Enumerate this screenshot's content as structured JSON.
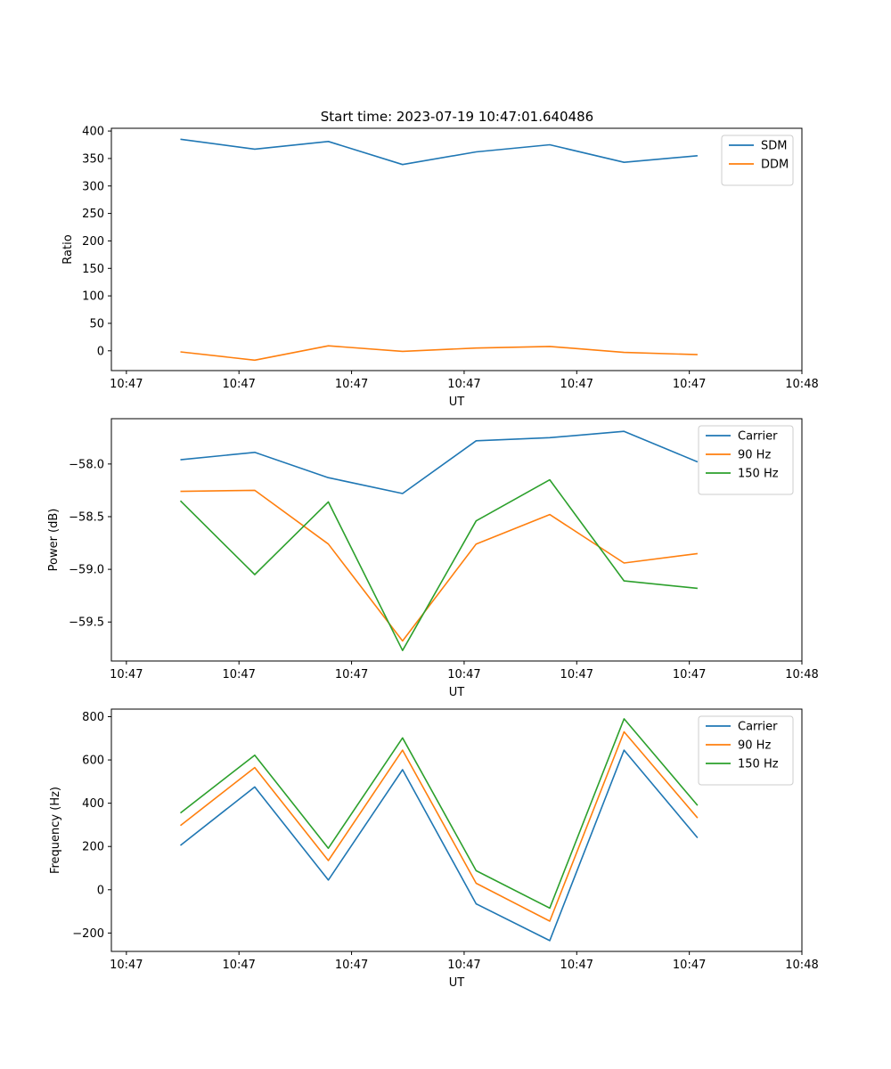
{
  "figure": {
    "title": "Start time: 2023-07-19 10:47:01.640486"
  },
  "chart_data": [
    {
      "type": "line",
      "title": "Start time: 2023-07-19 10:47:01.640486",
      "xlabel": "UT",
      "ylabel": "Ratio",
      "xlim": [
        -0.2,
        9.0
      ],
      "ylim": [
        -36,
        405
      ],
      "x_ticks": [
        0,
        1.5,
        3,
        4.5,
        6,
        7.5,
        9
      ],
      "x_tick_labels": [
        "10:47",
        "10:47",
        "10:47",
        "10:47",
        "10:47",
        "10:47",
        "10:48"
      ],
      "y_ticks": [
        0,
        50,
        100,
        150,
        200,
        250,
        300,
        350,
        400
      ],
      "y_tick_labels": [
        "0",
        "50",
        "100",
        "150",
        "200",
        "250",
        "300",
        "350",
        "400"
      ],
      "legend_position": "top-right",
      "x": [
        0.72,
        1.71,
        2.69,
        3.68,
        4.66,
        5.64,
        6.63,
        7.61
      ],
      "series": [
        {
          "name": "SDM",
          "color": "#1f77b4",
          "values": [
            385,
            367,
            381,
            339,
            362,
            375,
            343,
            355
          ]
        },
        {
          "name": "DDM",
          "color": "#ff7f0e",
          "values": [
            -2,
            -17,
            9,
            -1,
            5,
            8,
            -3,
            -7
          ]
        }
      ]
    },
    {
      "type": "line",
      "title": "",
      "xlabel": "UT",
      "ylabel": "Power (dB)",
      "xlim": [
        -0.2,
        9.0
      ],
      "ylim": [
        -59.87,
        -57.57
      ],
      "x_ticks": [
        0,
        1.5,
        3,
        4.5,
        6,
        7.5,
        9
      ],
      "x_tick_labels": [
        "10:47",
        "10:47",
        "10:47",
        "10:47",
        "10:47",
        "10:47",
        "10:48"
      ],
      "y_ticks": [
        -59.5,
        -59.0,
        -58.5,
        -58.0
      ],
      "y_tick_labels": [
        "−59.5",
        "−59.0",
        "−58.5",
        "−58.0"
      ],
      "legend_position": "top-right",
      "x": [
        0.72,
        1.71,
        2.69,
        3.68,
        4.66,
        5.64,
        6.63,
        7.61
      ],
      "series": [
        {
          "name": "Carrier",
          "color": "#1f77b4",
          "values": [
            -57.96,
            -57.89,
            -58.13,
            -58.28,
            -57.78,
            -57.75,
            -57.69,
            -57.98
          ]
        },
        {
          "name": "90 Hz",
          "color": "#ff7f0e",
          "values": [
            -58.26,
            -58.25,
            -58.76,
            -59.68,
            -58.76,
            -58.48,
            -58.94,
            -58.85
          ]
        },
        {
          "name": "150 Hz",
          "color": "#2ca02c",
          "values": [
            -58.35,
            -59.05,
            -58.36,
            -59.77,
            -58.54,
            -58.15,
            -59.11,
            -59.18
          ]
        }
      ]
    },
    {
      "type": "line",
      "title": "",
      "xlabel": "UT",
      "ylabel": "Frequency (Hz)",
      "xlim": [
        -0.2,
        9.0
      ],
      "ylim": [
        -285,
        835
      ],
      "x_ticks": [
        0,
        1.5,
        3,
        4.5,
        6,
        7.5,
        9
      ],
      "x_tick_labels": [
        "10:47",
        "10:47",
        "10:47",
        "10:47",
        "10:47",
        "10:47",
        "10:48"
      ],
      "y_ticks": [
        -200,
        0,
        200,
        400,
        600,
        800
      ],
      "y_tick_labels": [
        "−200",
        "0",
        "200",
        "400",
        "600",
        "800"
      ],
      "legend_position": "top-right",
      "x": [
        0.72,
        1.71,
        2.69,
        3.68,
        4.66,
        5.64,
        6.63,
        7.61
      ],
      "series": [
        {
          "name": "Carrier",
          "color": "#1f77b4",
          "values": [
            205,
            475,
            45,
            555,
            -65,
            -235,
            645,
            240
          ]
        },
        {
          "name": "90 Hz",
          "color": "#ff7f0e",
          "values": [
            297,
            565,
            135,
            645,
            30,
            -145,
            730,
            332
          ]
        },
        {
          "name": "150 Hz",
          "color": "#2ca02c",
          "values": [
            355,
            622,
            192,
            702,
            88,
            -85,
            790,
            390
          ]
        }
      ]
    }
  ]
}
